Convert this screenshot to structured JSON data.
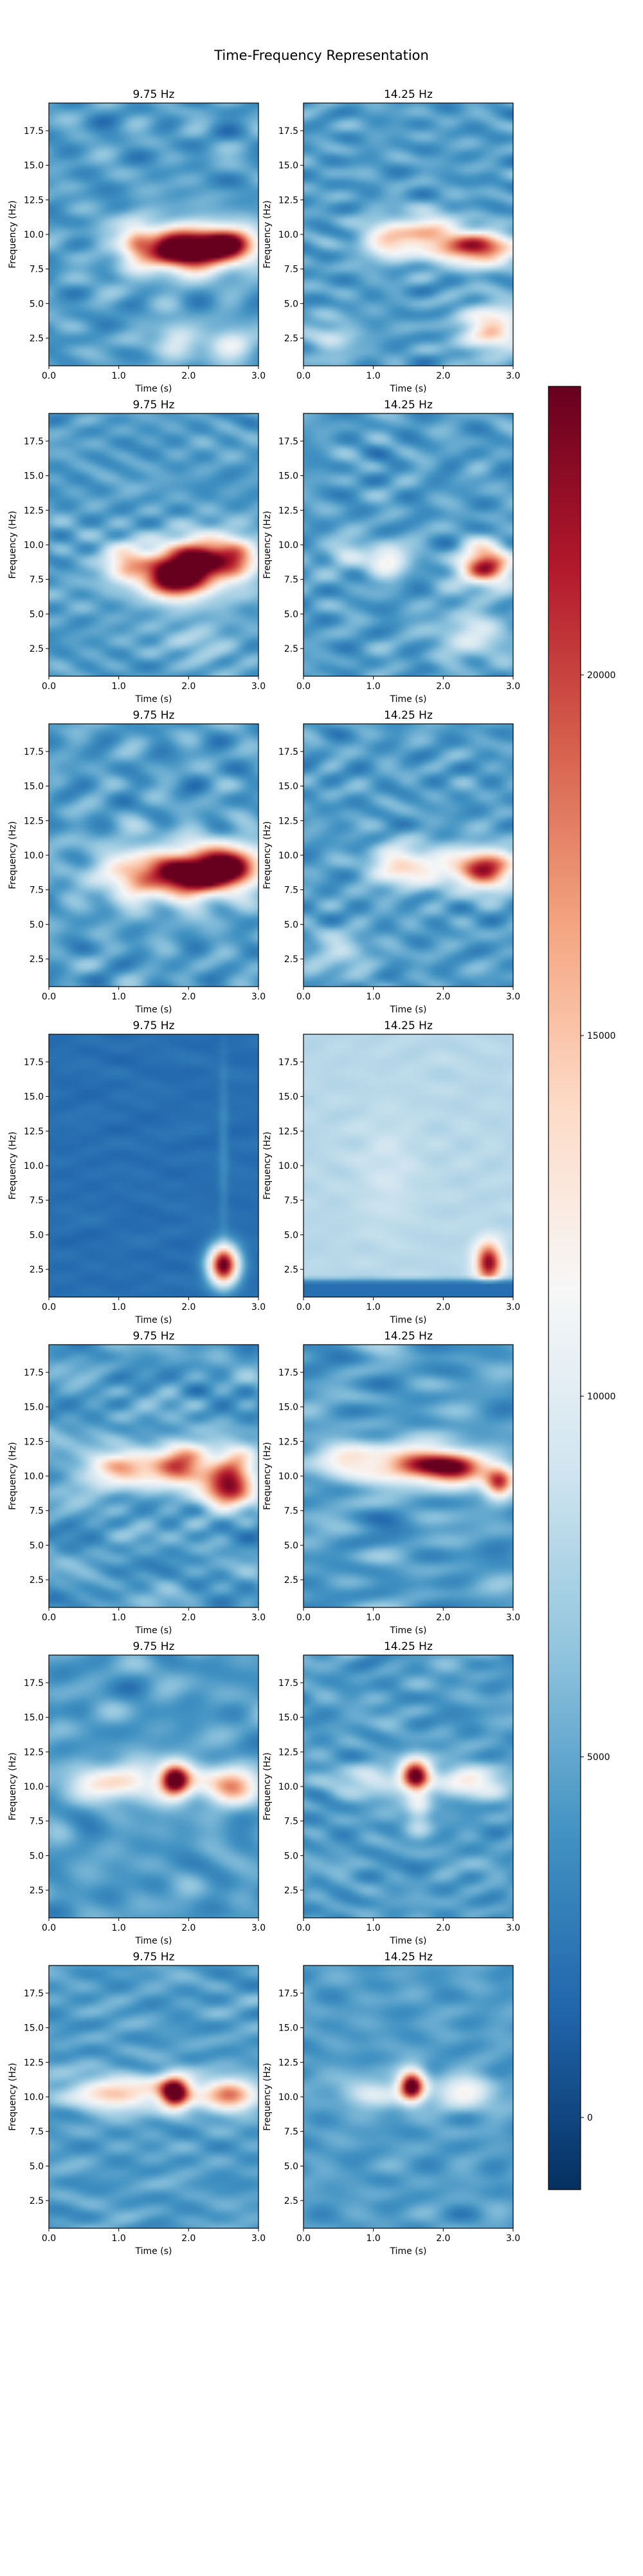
{
  "figure": {
    "title": "Time-Frequency Representation"
  },
  "chart_data": {
    "type": "heatmap",
    "layout": {
      "rows": 8,
      "cols": 2
    },
    "x_axis": {
      "label": "Time (s)",
      "range": [
        0.0,
        3.0
      ],
      "ticks": [
        0.0,
        1.0,
        2.0,
        3.0
      ],
      "tick_labels": [
        "0.0",
        "1.0",
        "2.0",
        "3.0"
      ]
    },
    "y_axis": {
      "label": "Frequency (Hz)",
      "range": [
        0.5,
        19.5
      ],
      "ticks": [
        2.5,
        5.0,
        7.5,
        10.0,
        12.5,
        15.0,
        17.5
      ],
      "tick_labels": [
        "2.5",
        "5.0",
        "7.5",
        "10.0",
        "12.5",
        "15.0",
        "17.5"
      ]
    },
    "colorbar": {
      "colormap": "RdBu_r",
      "range": [
        -1000,
        24000
      ],
      "ticks": [
        0,
        5000,
        10000,
        15000,
        20000
      ],
      "tick_labels": [
        "0",
        "5000",
        "10000",
        "15000",
        "20000"
      ]
    },
    "panels": [
      {
        "title": "9.75 Hz",
        "background": 0.22,
        "noise": 0.09,
        "blobs": [
          {
            "t": 1.25,
            "f": 9.5,
            "st": 0.15,
            "sf": 0.8,
            "a": 0.3
          },
          {
            "t": 2.0,
            "f": 8.9,
            "st": 0.35,
            "sf": 0.9,
            "a": 0.75
          },
          {
            "t": 2.6,
            "f": 9.2,
            "st": 0.3,
            "sf": 0.9,
            "a": 0.7
          },
          {
            "t": 1.7,
            "f": 9.0,
            "st": 0.5,
            "sf": 1.4,
            "a": 0.35
          },
          {
            "t": 1.8,
            "f": 2.2,
            "st": 0.2,
            "sf": 0.9,
            "a": 0.25
          },
          {
            "t": 2.6,
            "f": 2.2,
            "st": 0.2,
            "sf": 0.9,
            "a": 0.25
          }
        ]
      },
      {
        "title": "14.25 Hz",
        "background": 0.22,
        "noise": 0.09,
        "blobs": [
          {
            "t": 1.2,
            "f": 9.6,
            "st": 0.25,
            "sf": 1.0,
            "a": 0.35
          },
          {
            "t": 1.8,
            "f": 10.0,
            "st": 0.3,
            "sf": 1.0,
            "a": 0.4
          },
          {
            "t": 2.5,
            "f": 9.0,
            "st": 0.35,
            "sf": 0.8,
            "a": 0.7
          },
          {
            "t": 2.7,
            "f": 3.2,
            "st": 0.3,
            "sf": 1.2,
            "a": 0.4
          },
          {
            "t": 0.4,
            "f": 2.5,
            "st": 0.25,
            "sf": 1.0,
            "a": 0.15
          }
        ]
      },
      {
        "title": "9.75 Hz",
        "background": 0.22,
        "noise": 0.09,
        "blobs": [
          {
            "t": 1.1,
            "f": 8.7,
            "st": 0.2,
            "sf": 0.9,
            "a": 0.3
          },
          {
            "t": 1.8,
            "f": 7.6,
            "st": 0.3,
            "sf": 1.0,
            "a": 0.75
          },
          {
            "t": 2.2,
            "f": 9.0,
            "st": 0.3,
            "sf": 1.0,
            "a": 0.6
          },
          {
            "t": 2.7,
            "f": 9.0,
            "st": 0.2,
            "sf": 1.0,
            "a": 0.4
          },
          {
            "t": 1.9,
            "f": 8.4,
            "st": 0.7,
            "sf": 1.6,
            "a": 0.25
          },
          {
            "t": 2.2,
            "f": 3.0,
            "st": 0.35,
            "sf": 1.0,
            "a": 0.12
          }
        ]
      },
      {
        "title": "14.25 Hz",
        "background": 0.22,
        "noise": 0.09,
        "blobs": [
          {
            "t": 0.6,
            "f": 9.2,
            "st": 0.2,
            "sf": 0.9,
            "a": 0.15
          },
          {
            "t": 1.2,
            "f": 9.0,
            "st": 0.2,
            "sf": 0.8,
            "a": 0.32
          },
          {
            "t": 2.6,
            "f": 8.5,
            "st": 0.25,
            "sf": 1.0,
            "a": 0.7
          },
          {
            "t": 2.4,
            "f": 3.5,
            "st": 0.35,
            "sf": 1.2,
            "a": 0.2
          }
        ]
      },
      {
        "title": "9.75 Hz",
        "background": 0.22,
        "noise": 0.09,
        "blobs": [
          {
            "t": 1.2,
            "f": 8.5,
            "st": 0.25,
            "sf": 1.0,
            "a": 0.3
          },
          {
            "t": 2.0,
            "f": 8.6,
            "st": 0.35,
            "sf": 1.0,
            "a": 0.72
          },
          {
            "t": 2.6,
            "f": 9.2,
            "st": 0.3,
            "sf": 1.0,
            "a": 0.7
          },
          {
            "t": 1.8,
            "f": 8.8,
            "st": 0.8,
            "sf": 1.7,
            "a": 0.25
          }
        ]
      },
      {
        "title": "14.25 Hz",
        "background": 0.22,
        "noise": 0.09,
        "blobs": [
          {
            "t": 1.3,
            "f": 9.2,
            "st": 0.25,
            "sf": 1.0,
            "a": 0.3
          },
          {
            "t": 2.6,
            "f": 9.0,
            "st": 0.3,
            "sf": 1.0,
            "a": 0.7
          },
          {
            "t": 1.8,
            "f": 9.2,
            "st": 0.3,
            "sf": 1.0,
            "a": 0.25
          },
          {
            "t": 0.5,
            "f": 3.0,
            "st": 0.3,
            "sf": 1.0,
            "a": 0.15
          }
        ]
      },
      {
        "title": "9.75 Hz",
        "background": 0.12,
        "noise": 0.02,
        "blobs": [
          {
            "t": 2.5,
            "f": 11.0,
            "st": 0.05,
            "sf": 5.0,
            "a": 0.06
          },
          {
            "t": 2.5,
            "f": 2.8,
            "st": 0.15,
            "sf": 1.0,
            "a": 0.88
          }
        ]
      },
      {
        "title": "14.25 Hz",
        "background": 0.36,
        "noise": 0.02,
        "blobs": [
          {
            "t": 1.2,
            "f": 9.5,
            "st": 0.3,
            "sf": 3.0,
            "a": 0.04
          },
          {
            "t": 2.65,
            "f": 3.0,
            "st": 0.13,
            "sf": 1.0,
            "a": 0.6
          }
        ],
        "bottom_band": {
          "fmax": 2.0,
          "value": 0.12
        }
      },
      {
        "title": "9.75 Hz",
        "background": 0.22,
        "noise": 0.09,
        "blobs": [
          {
            "t": 1.0,
            "f": 10.5,
            "st": 0.3,
            "sf": 0.8,
            "a": 0.3
          },
          {
            "t": 1.9,
            "f": 11.0,
            "st": 0.25,
            "sf": 1.0,
            "a": 0.45
          },
          {
            "t": 2.55,
            "f": 9.2,
            "st": 0.25,
            "sf": 1.0,
            "a": 0.7
          },
          {
            "t": 2.7,
            "f": 11.0,
            "st": 0.2,
            "sf": 0.8,
            "a": 0.35
          },
          {
            "t": 1.5,
            "f": 10.5,
            "st": 0.8,
            "sf": 1.3,
            "a": 0.2
          }
        ]
      },
      {
        "title": "14.25 Hz",
        "background": 0.22,
        "noise": 0.09,
        "blobs": [
          {
            "t": 0.6,
            "f": 11.0,
            "st": 0.3,
            "sf": 0.8,
            "a": 0.25
          },
          {
            "t": 1.7,
            "f": 10.8,
            "st": 0.35,
            "sf": 0.8,
            "a": 0.45
          },
          {
            "t": 2.2,
            "f": 10.5,
            "st": 0.3,
            "sf": 0.8,
            "a": 0.55
          },
          {
            "t": 2.8,
            "f": 9.5,
            "st": 0.15,
            "sf": 0.8,
            "a": 0.6
          },
          {
            "t": 1.4,
            "f": 11.0,
            "st": 0.8,
            "sf": 1.2,
            "a": 0.2
          }
        ]
      },
      {
        "title": "9.75 Hz",
        "background": 0.22,
        "noise": 0.08,
        "blobs": [
          {
            "t": 0.9,
            "f": 10.3,
            "st": 0.35,
            "sf": 0.8,
            "a": 0.2
          },
          {
            "t": 1.8,
            "f": 10.5,
            "st": 0.15,
            "sf": 0.8,
            "a": 0.75
          },
          {
            "t": 2.6,
            "f": 10.0,
            "st": 0.25,
            "sf": 0.9,
            "a": 0.42
          },
          {
            "t": 1.5,
            "f": 10.3,
            "st": 0.9,
            "sf": 1.0,
            "a": 0.2
          }
        ]
      },
      {
        "title": "14.25 Hz",
        "background": 0.22,
        "noise": 0.08,
        "blobs": [
          {
            "t": 1.6,
            "f": 10.8,
            "st": 0.15,
            "sf": 0.8,
            "a": 0.75
          },
          {
            "t": 2.4,
            "f": 10.3,
            "st": 0.35,
            "sf": 0.8,
            "a": 0.3
          },
          {
            "t": 1.0,
            "f": 10.5,
            "st": 0.35,
            "sf": 0.8,
            "a": 0.2
          },
          {
            "t": 1.65,
            "f": 8.5,
            "st": 0.12,
            "sf": 1.2,
            "a": 0.2
          }
        ]
      },
      {
        "title": "9.75 Hz",
        "background": 0.22,
        "noise": 0.07,
        "blobs": [
          {
            "t": 0.9,
            "f": 10.3,
            "st": 0.35,
            "sf": 0.8,
            "a": 0.25
          },
          {
            "t": 1.8,
            "f": 10.3,
            "st": 0.15,
            "sf": 0.8,
            "a": 0.75
          },
          {
            "t": 2.6,
            "f": 10.2,
            "st": 0.25,
            "sf": 0.8,
            "a": 0.45
          },
          {
            "t": 1.5,
            "f": 10.3,
            "st": 0.9,
            "sf": 0.9,
            "a": 0.22
          }
        ]
      },
      {
        "title": "14.25 Hz",
        "background": 0.22,
        "noise": 0.07,
        "blobs": [
          {
            "t": 1.55,
            "f": 10.8,
            "st": 0.13,
            "sf": 0.8,
            "a": 0.8
          },
          {
            "t": 2.3,
            "f": 10.3,
            "st": 0.3,
            "sf": 0.8,
            "a": 0.3
          },
          {
            "t": 1.0,
            "f": 10.3,
            "st": 0.35,
            "sf": 0.8,
            "a": 0.2
          }
        ]
      }
    ]
  }
}
